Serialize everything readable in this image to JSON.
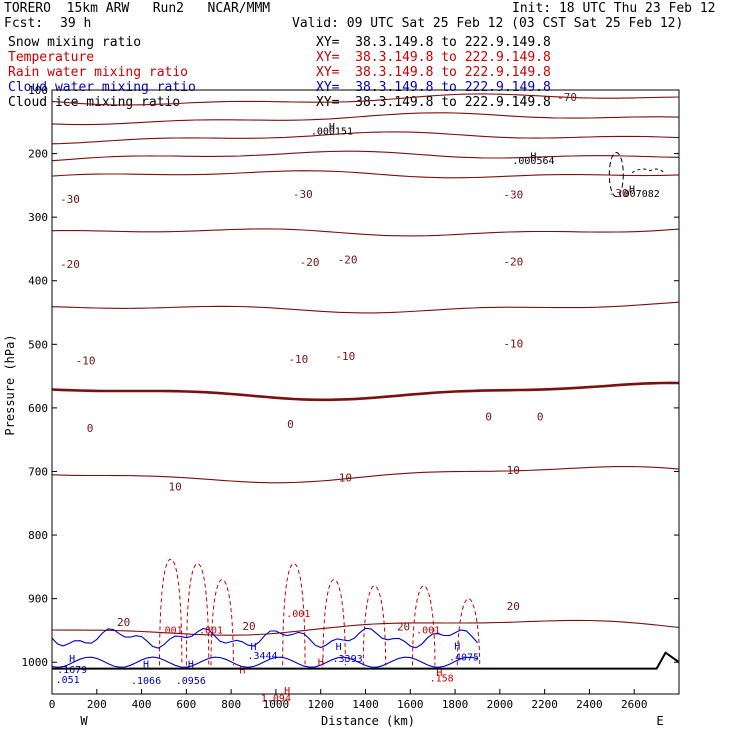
{
  "header": {
    "model": "TORERO  15km ARW   Run2   NCAR/MMM",
    "init": "Init: 18 UTC Thu 23 Feb 12",
    "fcst_label": "Fcst:",
    "fcst_value": "39 h",
    "valid": "Valid: 09 UTC Sat 25 Feb 12 (03 CST Sat 25 Feb 12)"
  },
  "fields": [
    {
      "name": "Snow mixing ratio",
      "xy": "XY=  38.3.149.8 to 222.9.149.8",
      "color": "#000000"
    },
    {
      "name": "Temperature",
      "xy": "XY=  38.3.149.8 to 222.9.149.8",
      "color": "#cc0000"
    },
    {
      "name": "Rain water mixing ratio",
      "xy": "XY=  38.3.149.8 to 222.9.149.8",
      "color": "#cc0000"
    },
    {
      "name": "Cloud water mixing ratio",
      "xy": "XY=  38.3.149.8 to 222.9.149.8",
      "color": "#0000cc"
    },
    {
      "name": "Cloud ice mixing ratio",
      "xy": "XY=  38.3.149.8 to 222.9.149.8",
      "color": "#000000"
    }
  ],
  "chart_data": {
    "type": "contour-cross-section",
    "ylabel": "Pressure (hPa)",
    "xlabel": "Distance (km)",
    "x_end_labels": [
      "W",
      "E"
    ],
    "xlim": [
      0,
      2800
    ],
    "ylim": [
      1050,
      100
    ],
    "x_ticks": [
      0,
      200,
      400,
      600,
      800,
      1000,
      1200,
      1400,
      1600,
      1800,
      2000,
      2200,
      2400,
      2600
    ],
    "y_ticks": [
      100,
      200,
      300,
      400,
      500,
      600,
      700,
      800,
      900,
      1000
    ],
    "surface_pressure": 1010,
    "temperature_contours": [
      {
        "value": -70,
        "pressure": 118
      },
      {
        "value": -30,
        "pressure": 236
      },
      {
        "value": -20,
        "pressure": 326
      },
      {
        "value": -10,
        "pressure": 446
      },
      {
        "value": 0,
        "pressure": 578
      },
      {
        "value": 10,
        "pressure": 708
      },
      {
        "value": 20,
        "pressure": 948
      }
    ],
    "temperature_labels": [
      {
        "text": "-70",
        "x": 2300,
        "p": 117
      },
      {
        "text": "-30",
        "x": 80,
        "p": 278
      },
      {
        "text": "-30",
        "x": 1120,
        "p": 270
      },
      {
        "text": "-30",
        "x": 2060,
        "p": 271
      },
      {
        "text": "-30",
        "x": 2530,
        "p": 268
      },
      {
        "text": "-20",
        "x": 80,
        "p": 380
      },
      {
        "text": "-20",
        "x": 1150,
        "p": 377
      },
      {
        "text": "-20",
        "x": 1320,
        "p": 373
      },
      {
        "text": "-20",
        "x": 2060,
        "p": 376
      },
      {
        "text": "-10",
        "x": 150,
        "p": 532
      },
      {
        "text": "-10",
        "x": 1100,
        "p": 529
      },
      {
        "text": "-10",
        "x": 1310,
        "p": 525
      },
      {
        "text": "-10",
        "x": 2060,
        "p": 505
      },
      {
        "text": "0",
        "x": 170,
        "p": 638
      },
      {
        "text": "0",
        "x": 1065,
        "p": 632
      },
      {
        "text": "0",
        "x": 1950,
        "p": 620
      },
      {
        "text": "0",
        "x": 2180,
        "p": 620
      },
      {
        "text": "10",
        "x": 550,
        "p": 730
      },
      {
        "text": "10",
        "x": 1310,
        "p": 716
      },
      {
        "text": "10",
        "x": 2060,
        "p": 704
      },
      {
        "text": "20",
        "x": 320,
        "p": 943
      },
      {
        "text": "20",
        "x": 880,
        "p": 949
      },
      {
        "text": "20",
        "x": 1570,
        "p": 950
      },
      {
        "text": "20",
        "x": 2060,
        "p": 918
      }
    ],
    "extrema_labels": [
      {
        "text": "H",
        "x": 1250,
        "p": 163,
        "color": "#000000"
      },
      {
        "text": ".000151",
        "x": 1250,
        "p": 170,
        "color": "#000000"
      },
      {
        "text": "H",
        "x": 2150,
        "p": 209,
        "color": "#000000"
      },
      {
        "text": ".000564",
        "x": 2150,
        "p": 216,
        "color": "#000000"
      },
      {
        "text": "H",
        "x": 2590,
        "p": 261,
        "color": "#000000"
      },
      {
        "text": ".007082",
        "x": 2620,
        "p": 268,
        "color": "#000000"
      },
      {
        "text": "H",
        "x": 90,
        "p": 1000,
        "color": "#0000cc"
      },
      {
        "text": ".1679",
        "x": 90,
        "p": 1017,
        "color": "#0000cc"
      },
      {
        "text": ".051",
        "x": 70,
        "p": 1033,
        "color": "#0000cc"
      },
      {
        "text": "H",
        "x": 420,
        "p": 1008,
        "color": "#0000cc"
      },
      {
        "text": ".1066",
        "x": 420,
        "p": 1034,
        "color": "#0000cc"
      },
      {
        "text": "H",
        "x": 620,
        "p": 1008,
        "color": "#0000cc"
      },
      {
        "text": ".0956",
        "x": 620,
        "p": 1034,
        "color": "#0000cc"
      },
      {
        "text": "H",
        "x": 900,
        "p": 981,
        "color": "#0000cc"
      },
      {
        "text": ".3444",
        "x": 940,
        "p": 995,
        "color": "#0000cc"
      },
      {
        "text": "H",
        "x": 1280,
        "p": 981,
        "color": "#0000cc"
      },
      {
        "text": ".3393",
        "x": 1320,
        "p": 1000,
        "color": "#0000cc"
      },
      {
        "text": "H",
        "x": 1810,
        "p": 980,
        "color": "#0000cc"
      },
      {
        "text": ".4075",
        "x": 1840,
        "p": 997,
        "color": "#0000cc"
      },
      {
        "text": ".001",
        "x": 530,
        "p": 955,
        "color": "#cc0000"
      },
      {
        "text": ".001",
        "x": 710,
        "p": 955,
        "color": "#cc0000"
      },
      {
        "text": ".001",
        "x": 1100,
        "p": 929,
        "color": "#cc0000"
      },
      {
        "text": ".001",
        "x": 1680,
        "p": 955,
        "color": "#cc0000"
      },
      {
        "text": "H",
        "x": 850,
        "p": 1018,
        "color": "#cc0000"
      },
      {
        "text": "H",
        "x": 1200,
        "p": 1005,
        "color": "#cc0000"
      },
      {
        "text": "H",
        "x": 1730,
        "p": 1022,
        "color": "#cc0000"
      },
      {
        "text": ".158",
        "x": 1740,
        "p": 1030,
        "color": "#cc0000"
      },
      {
        "text": "H",
        "x": 1050,
        "p": 1050,
        "color": "#cc0000"
      },
      {
        "text": "1.094",
        "x": 1000,
        "p": 1062,
        "color": "#cc0000"
      }
    ]
  }
}
